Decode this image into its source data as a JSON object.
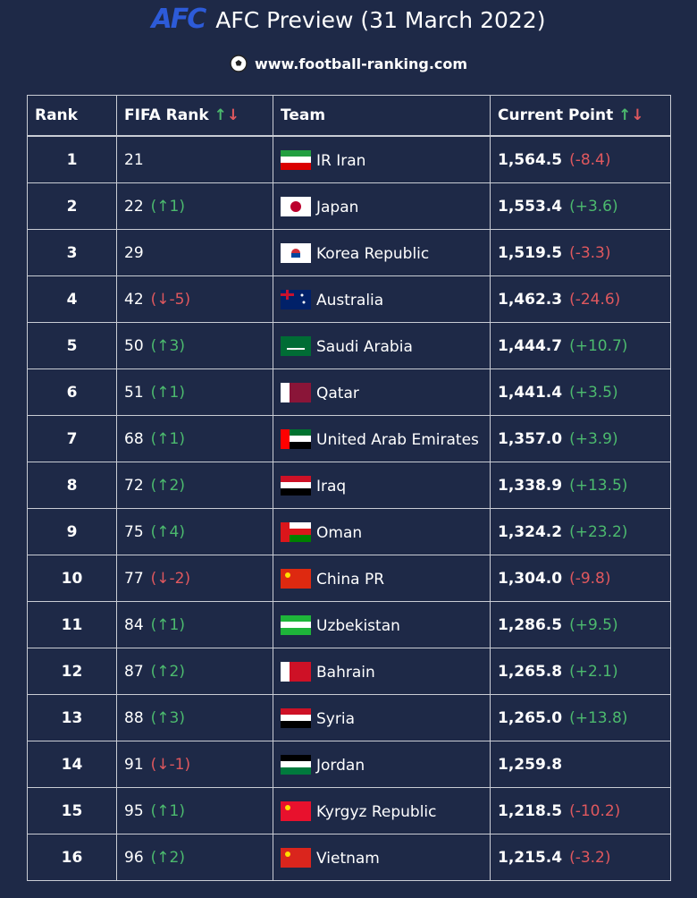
{
  "header": {
    "logo": "AFC",
    "title": "AFC Preview (31 March 2022)",
    "site": "www.football-ranking.com"
  },
  "table": {
    "columns": [
      "Rank",
      "FIFA Rank",
      "Team",
      "Current Point"
    ],
    "sort_arrows": [
      "↑",
      "↓"
    ],
    "rows": [
      [
        "1",
        "21",
        null,
        "IR Iran",
        "1,564.5",
        "(-8.4)"
      ],
      [
        "2",
        "22",
        "(↑1)",
        "Japan",
        "1,553.4",
        "(+3.6)"
      ],
      [
        "3",
        "29",
        null,
        "Korea Republic",
        "1,519.5",
        "(-3.3)"
      ],
      [
        "4",
        "42",
        "(↓-5)",
        "Australia",
        "1,462.3",
        "(-24.6)"
      ],
      [
        "5",
        "50",
        "(↑3)",
        "Saudi Arabia",
        "1,444.7",
        "(+10.7)"
      ],
      [
        "6",
        "51",
        "(↑1)",
        "Qatar",
        "1,441.4",
        "(+3.5)"
      ],
      [
        "7",
        "68",
        "(↑1)",
        "United Arab Emirates",
        "1,357.0",
        "(+3.9)"
      ],
      [
        "8",
        "72",
        "(↑2)",
        "Iraq",
        "1,338.9",
        "(+13.5)"
      ],
      [
        "9",
        "75",
        "(↑4)",
        "Oman",
        "1,324.2",
        "(+23.2)"
      ],
      [
        "10",
        "77",
        "(↓-2)",
        "China PR",
        "1,304.0",
        "(-9.8)"
      ],
      [
        "11",
        "84",
        "(↑1)",
        "Uzbekistan",
        "1,286.5",
        "(+9.5)"
      ],
      [
        "12",
        "87",
        "(↑2)",
        "Bahrain",
        "1,265.8",
        "(+2.1)"
      ],
      [
        "13",
        "88",
        "(↑3)",
        "Syria",
        "1,265.0",
        "(+13.8)"
      ],
      [
        "14",
        "91",
        "(↓-1)",
        "Jordan",
        "1,259.8",
        null
      ],
      [
        "15",
        "95",
        "(↑1)",
        "Kyrgyz Republic",
        "1,218.5",
        "(-10.2)"
      ],
      [
        "16",
        "96",
        "(↑2)",
        "Vietnam",
        "1,215.4",
        "(-3.2)"
      ]
    ]
  }
}
